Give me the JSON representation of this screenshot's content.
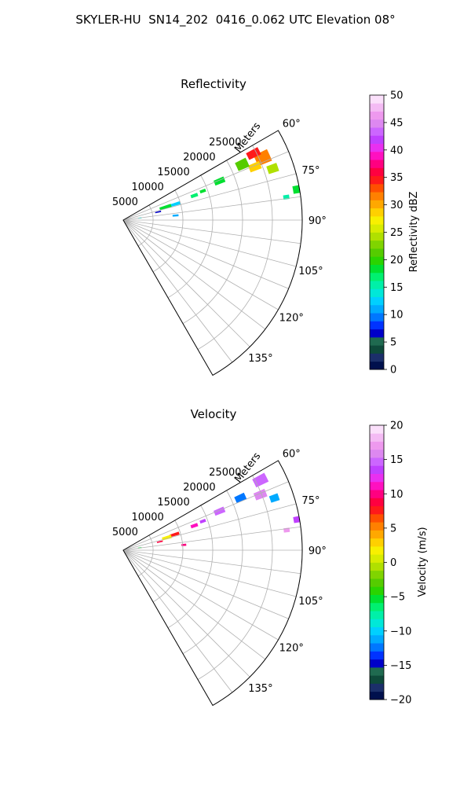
{
  "suptitle": "SKYLER-HU  SN14_202  0416_0.062 UTC Elevation 08°",
  "chart_data": [
    {
      "type": "heatmap",
      "projection": "polar-sector",
      "title": "Reflectivity",
      "radial_label": "Meters",
      "radial_ticks": [
        "5000",
        "10000",
        "15000",
        "20000",
        "25000"
      ],
      "azimuth_ticks": [
        "60°",
        "75°",
        "90°",
        "105°",
        "120°",
        "135°"
      ],
      "azimuth_range_deg": [
        60,
        150
      ],
      "range_max_m": 30000,
      "grid": true,
      "colorbar": {
        "label": "Reflectivity dBZ",
        "range": [
          0,
          50
        ],
        "ticks": [
          "0",
          "5",
          "10",
          "15",
          "20",
          "25",
          "30",
          "35",
          "40",
          "45",
          "50"
        ],
        "colors": [
          "#00104d",
          "#1b2f6a",
          "#0e4a3a",
          "#1f6a50",
          "#0000c8",
          "#0033ff",
          "#0077ff",
          "#00aaff",
          "#00d0ff",
          "#00e8d8",
          "#00f0a8",
          "#00f070",
          "#00e030",
          "#2ad400",
          "#55cc00",
          "#80d400",
          "#b0e000",
          "#d8ec00",
          "#f8f000",
          "#ffd000",
          "#ffa800",
          "#ff8000",
          "#ff5000",
          "#ff1a1a",
          "#ff0040",
          "#ff0080",
          "#ff10c0",
          "#e830f0",
          "#c040ff",
          "#cc66ff",
          "#dd88f0",
          "#ee99ee",
          "#f4bbf4",
          "#fbe0fb"
        ]
      },
      "echoes": [
        {
          "az": 66,
          "r": 25600,
          "dr": 2500,
          "daz": 4.5,
          "value": 32
        },
        {
          "az": 63,
          "r": 24500,
          "dr": 2200,
          "daz": 3,
          "value": 35
        },
        {
          "az": 68,
          "r": 23800,
          "dr": 2000,
          "daz": 3,
          "value": 28
        },
        {
          "az": 71,
          "r": 26500,
          "dr": 1800,
          "daz": 3,
          "value": 24
        },
        {
          "az": 65,
          "r": 22000,
          "dr": 2000,
          "daz": 4,
          "value": 21
        },
        {
          "az": 68,
          "r": 17400,
          "dr": 1800,
          "daz": 3,
          "value": 19
        },
        {
          "az": 70,
          "r": 14200,
          "dr": 1000,
          "daz": 2,
          "value": 19
        },
        {
          "az": 71,
          "r": 12600,
          "dr": 1200,
          "daz": 2.5,
          "value": 17
        },
        {
          "az": 73,
          "r": 9000,
          "dr": 2000,
          "daz": 3,
          "value": 12
        },
        {
          "az": 73,
          "r": 7400,
          "dr": 2000,
          "daz": 4,
          "value": 18
        },
        {
          "az": 77,
          "r": 6000,
          "dr": 1000,
          "daz": 2,
          "value": 6
        },
        {
          "az": 80,
          "r": 29500,
          "dr": 1200,
          "daz": 2.5,
          "value": 18
        },
        {
          "az": 82,
          "r": 27600,
          "dr": 1000,
          "daz": 1.5,
          "value": 16
        },
        {
          "az": 85,
          "r": 8800,
          "dr": 1000,
          "daz": 2,
          "value": 11
        },
        {
          "az": 83,
          "r": 2800,
          "dr": 600,
          "daz": 3,
          "value": 14
        }
      ]
    },
    {
      "type": "heatmap",
      "projection": "polar-sector",
      "title": "Velocity",
      "radial_label": "Meters",
      "radial_ticks": [
        "5000",
        "10000",
        "15000",
        "20000",
        "25000"
      ],
      "azimuth_ticks": [
        "60°",
        "75°",
        "90°",
        "105°",
        "120°",
        "135°"
      ],
      "azimuth_range_deg": [
        60,
        150
      ],
      "range_max_m": 30000,
      "grid": true,
      "colorbar": {
        "label": "Velocity (m/s)",
        "range": [
          -20,
          20
        ],
        "ticks": [
          "−20",
          "−15",
          "−10",
          "−5",
          "0",
          "5",
          "10",
          "15",
          "20"
        ],
        "colors": [
          "#00104d",
          "#1b2f6a",
          "#0e4a3a",
          "#1f6a50",
          "#0000c8",
          "#0033ff",
          "#0077ff",
          "#00aaff",
          "#00d0ff",
          "#00e8d8",
          "#00f0a8",
          "#00f070",
          "#00e030",
          "#2ad400",
          "#55cc00",
          "#80d400",
          "#b0e000",
          "#d8ec00",
          "#f8f000",
          "#ffd000",
          "#ffa800",
          "#ff8000",
          "#ff5000",
          "#ff1a1a",
          "#ff0040",
          "#ff0080",
          "#ff10c0",
          "#e830f0",
          "#c040ff",
          "#cc66ff",
          "#dd88f0",
          "#ee99ee",
          "#f4bbf4",
          "#fbe0fb"
        ]
      },
      "echoes": [
        {
          "az": 63,
          "r": 25800,
          "dr": 2300,
          "daz": 3.5,
          "value": 15
        },
        {
          "az": 68,
          "r": 24800,
          "dr": 2000,
          "daz": 3,
          "value": 16
        },
        {
          "az": 66,
          "r": 21500,
          "dr": 1800,
          "daz": 3,
          "value": -12
        },
        {
          "az": 71,
          "r": 26800,
          "dr": 1500,
          "daz": 2.5,
          "value": -11
        },
        {
          "az": 68,
          "r": 17400,
          "dr": 1800,
          "daz": 3,
          "value": 15
        },
        {
          "az": 70,
          "r": 14200,
          "dr": 1000,
          "daz": 2,
          "value": 14
        },
        {
          "az": 71,
          "r": 12600,
          "dr": 1200,
          "daz": 2.5,
          "value": 11
        },
        {
          "az": 73,
          "r": 9000,
          "dr": 1600,
          "daz": 3,
          "value": 8
        },
        {
          "az": 74,
          "r": 7600,
          "dr": 1600,
          "daz": 4,
          "value": 2
        },
        {
          "az": 77,
          "r": 6300,
          "dr": 1000,
          "daz": 2,
          "value": 9
        },
        {
          "az": 80,
          "r": 29500,
          "dr": 1000,
          "daz": 2,
          "value": 14
        },
        {
          "az": 83,
          "r": 27600,
          "dr": 1000,
          "daz": 1.5,
          "value": 17
        },
        {
          "az": 85,
          "r": 10200,
          "dr": 800,
          "daz": 2,
          "value": 10
        },
        {
          "az": 82,
          "r": 2800,
          "dr": 600,
          "daz": 3,
          "value": -5
        }
      ]
    }
  ]
}
